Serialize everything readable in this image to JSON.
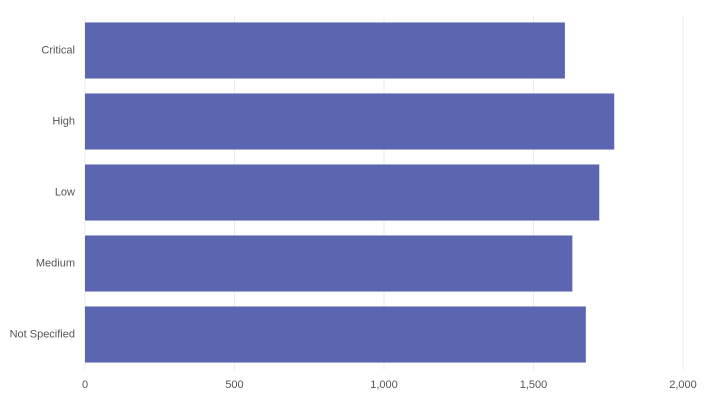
{
  "chart_data": {
    "type": "bar",
    "orientation": "horizontal",
    "categories": [
      "Critical",
      "High",
      "Low",
      "Medium",
      "Not Specified"
    ],
    "values": [
      1605,
      1770,
      1720,
      1630,
      1675
    ],
    "color": "#5c65b0",
    "xlim": [
      0,
      2000
    ],
    "xticks": [
      0,
      500,
      {
        "value": 1000,
        "label": "1,000"
      },
      {
        "value": 1500,
        "label": "1,500"
      },
      {
        "value": 2000,
        "label": "2,000"
      }
    ],
    "grid": true
  }
}
